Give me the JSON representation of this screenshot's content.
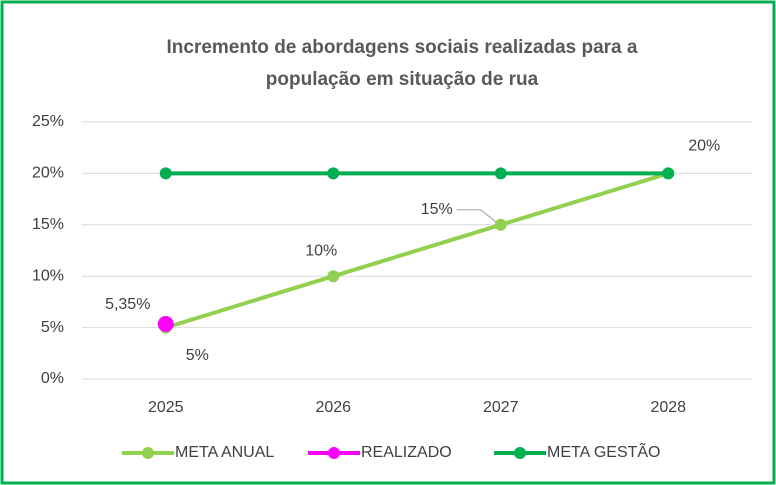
{
  "chart_data": {
    "type": "line",
    "title": [
      "Incremento de abordagens sociais realizadas para a",
      "população em situação de rua"
    ],
    "categories": [
      "2025",
      "2026",
      "2027",
      "2028"
    ],
    "series": [
      {
        "name": "META ANUAL",
        "color": "#92d050",
        "values": [
          5,
          10,
          15,
          20
        ],
        "value_labels": [
          "5%",
          "10%",
          "15%",
          "20%"
        ]
      },
      {
        "name": "REALIZADO",
        "color": "#ff00ff",
        "values": [
          5.35,
          null,
          null,
          null
        ],
        "value_labels": [
          "5,35%",
          null,
          null,
          null
        ]
      },
      {
        "name": "META GESTÃO",
        "color": "#00b050",
        "values": [
          20,
          20,
          20,
          20
        ]
      }
    ],
    "ylim": [
      0,
      25
    ],
    "yticks": [
      {
        "value": 0,
        "label": "0%"
      },
      {
        "value": 5,
        "label": "5%"
      },
      {
        "value": 10,
        "label": "10%"
      },
      {
        "value": 15,
        "label": "15%"
      },
      {
        "value": 20,
        "label": "20%"
      },
      {
        "value": 25,
        "label": "25%"
      }
    ],
    "grid": true,
    "legend": "bottom"
  }
}
